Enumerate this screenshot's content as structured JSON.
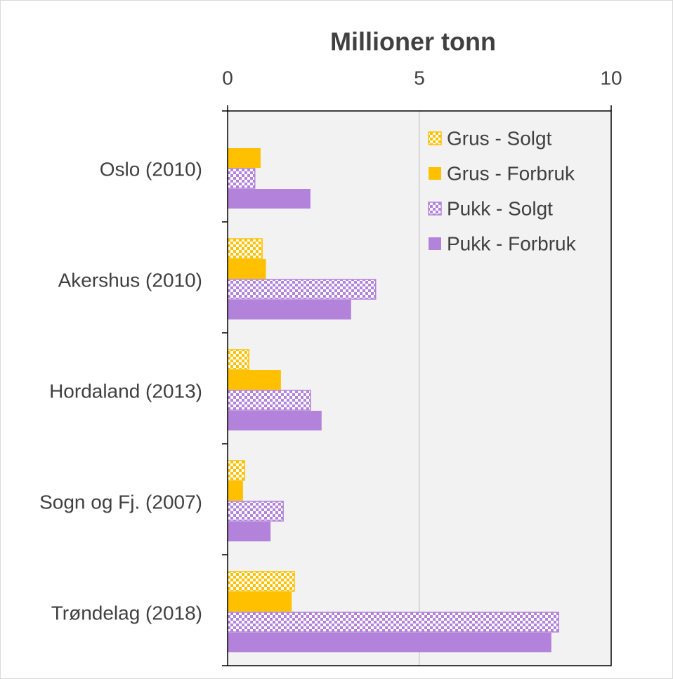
{
  "chart_data": {
    "type": "hbar",
    "title": "Millioner tonn",
    "categories": [
      "Oslo (2010)",
      "Akershus (2010)",
      "Hordaland (2013)",
      "Sogn og Fj. (2007)",
      "Trøndelag (2018)"
    ],
    "series": [
      {
        "name": "Grus - Solgt",
        "color": "#FFC000",
        "pattern": true,
        "values": [
          null,
          0.9,
          0.55,
          0.44,
          1.74
        ]
      },
      {
        "name": "Grus - Forbruk",
        "color": "#FFC000",
        "pattern": false,
        "values": [
          0.86,
          1.0,
          1.39,
          0.4,
          1.67
        ]
      },
      {
        "name": "Pukk - Solgt",
        "color": "#B383DB",
        "pattern": true,
        "values": [
          0.71,
          3.86,
          2.16,
          1.45,
          8.63
        ]
      },
      {
        "name": "Pukk - Forbruk",
        "color": "#B383DB",
        "pattern": false,
        "values": [
          2.16,
          3.22,
          2.45,
          1.12,
          8.44
        ]
      }
    ],
    "xlim": [
      0,
      10
    ],
    "xticks": [
      0,
      5,
      10
    ],
    "grid": true,
    "legend": "top-right"
  }
}
